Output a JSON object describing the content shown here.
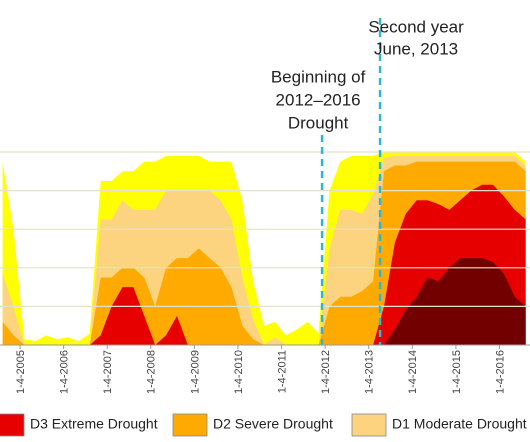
{
  "chart_data": {
    "type": "stacked_area",
    "x": [
      2004.6,
      2004.85,
      2005.1,
      2005.35,
      2005.6,
      2005.85,
      2006.1,
      2006.35,
      2006.6,
      2006.85,
      2007.1,
      2007.35,
      2007.6,
      2007.85,
      2008.1,
      2008.35,
      2008.6,
      2008.85,
      2009.1,
      2009.35,
      2009.6,
      2009.85,
      2010.1,
      2010.35,
      2010.6,
      2010.85,
      2011.1,
      2011.35,
      2011.6,
      2011.85,
      2012.1,
      2012.35,
      2012.6,
      2012.85,
      2013.1,
      2013.35,
      2013.6,
      2013.85,
      2014.1,
      2014.35,
      2014.6,
      2014.85,
      2015.1,
      2015.35,
      2015.6,
      2015.85,
      2016.1,
      2016.35,
      2016.6
    ],
    "series": [
      {
        "color": "#730000",
        "values": [
          0,
          0,
          0,
          0,
          0,
          0,
          0,
          0,
          0,
          0,
          0,
          0,
          0,
          0,
          0,
          0,
          0,
          0,
          0,
          0,
          0,
          0,
          0,
          0,
          0,
          0,
          0,
          0,
          0,
          0,
          0,
          0,
          0,
          0,
          0,
          0,
          8,
          18,
          25,
          35,
          33,
          40,
          45,
          45,
          45,
          43,
          37,
          25,
          20
        ]
      },
      {
        "name": "D3 Extreme Drought",
        "color": "#e60000",
        "values": [
          0,
          0,
          0,
          0,
          0,
          0,
          0,
          0,
          0,
          5,
          20,
          30,
          30,
          15,
          0,
          5,
          15,
          0,
          0,
          0,
          0,
          0,
          0,
          0,
          0,
          0,
          0,
          0,
          0,
          0,
          0,
          0,
          0,
          0,
          0,
          20,
          45,
          50,
          50,
          40,
          40,
          30,
          30,
          35,
          38,
          40,
          40,
          45,
          45
        ]
      },
      {
        "name": "D2 Severe Drought",
        "color": "#ffaa00",
        "values": [
          12,
          5,
          0,
          0,
          0,
          0,
          0,
          0,
          0,
          30,
          15,
          10,
          10,
          20,
          20,
          35,
          30,
          45,
          50,
          45,
          40,
          30,
          10,
          3,
          0,
          0,
          0,
          0,
          0,
          0,
          20,
          25,
          25,
          28,
          33,
          70,
          40,
          25,
          20,
          20,
          22,
          25,
          20,
          15,
          12,
          12,
          18,
          25,
          25
        ]
      },
      {
        "name": "D1 Moderate Drought",
        "color": "#fcd37f",
        "values": [
          25,
          15,
          0,
          0,
          0,
          0,
          0,
          0,
          0,
          30,
          30,
          35,
          30,
          35,
          50,
          40,
          35,
          35,
          30,
          35,
          35,
          35,
          25,
          10,
          0,
          4,
          0,
          0,
          0,
          0,
          30,
          45,
          45,
          40,
          45,
          7,
          5,
          5,
          3,
          3,
          3,
          3,
          3,
          3,
          3,
          3,
          3,
          3,
          3
        ]
      },
      {
        "color": "#ffff00",
        "values": [
          58,
          40,
          3,
          2,
          5,
          3,
          4,
          2,
          6,
          20,
          20,
          15,
          20,
          25,
          25,
          18,
          18,
          18,
          18,
          15,
          20,
          30,
          40,
          20,
          10,
          8,
          5,
          8,
          12,
          6,
          30,
          25,
          28,
          30,
          20,
          3,
          2,
          2,
          2,
          2,
          2,
          2,
          2,
          2,
          2,
          2,
          2,
          2,
          2
        ]
      }
    ],
    "xlim": [
      2004.54,
      2016.7
    ],
    "xticks": [
      {
        "value": 2005,
        "label": "1-4-2005"
      },
      {
        "value": 2006,
        "label": "1-4-2006"
      },
      {
        "value": 2007,
        "label": "1-4-2007"
      },
      {
        "value": 2008,
        "label": "1-4-2008"
      },
      {
        "value": 2009,
        "label": "1-4-2009"
      },
      {
        "value": 2010,
        "label": "1-4-2010"
      },
      {
        "value": 2011,
        "label": "1-4-2011"
      },
      {
        "value": 2012,
        "label": "1-4-2012"
      },
      {
        "value": 2013,
        "label": "1-4-2013"
      },
      {
        "value": 2014,
        "label": "1-4-2014"
      },
      {
        "value": 2015,
        "label": "1-4-2015"
      },
      {
        "value": 2016,
        "label": "1-4-2016"
      }
    ],
    "ylim": [
      0,
      100
    ],
    "yticks": [
      20,
      40,
      60,
      80,
      100
    ],
    "grid": true,
    "annotations": [
      {
        "lines": [
          "Beginning of",
          "2012–2016",
          "Drought"
        ],
        "x": 2011.93,
        "color": "#29b6d8"
      },
      {
        "lines": [
          "Second year",
          "June, 2013"
        ],
        "x": 2013.26,
        "color": "#29b6d8"
      }
    ]
  }
}
